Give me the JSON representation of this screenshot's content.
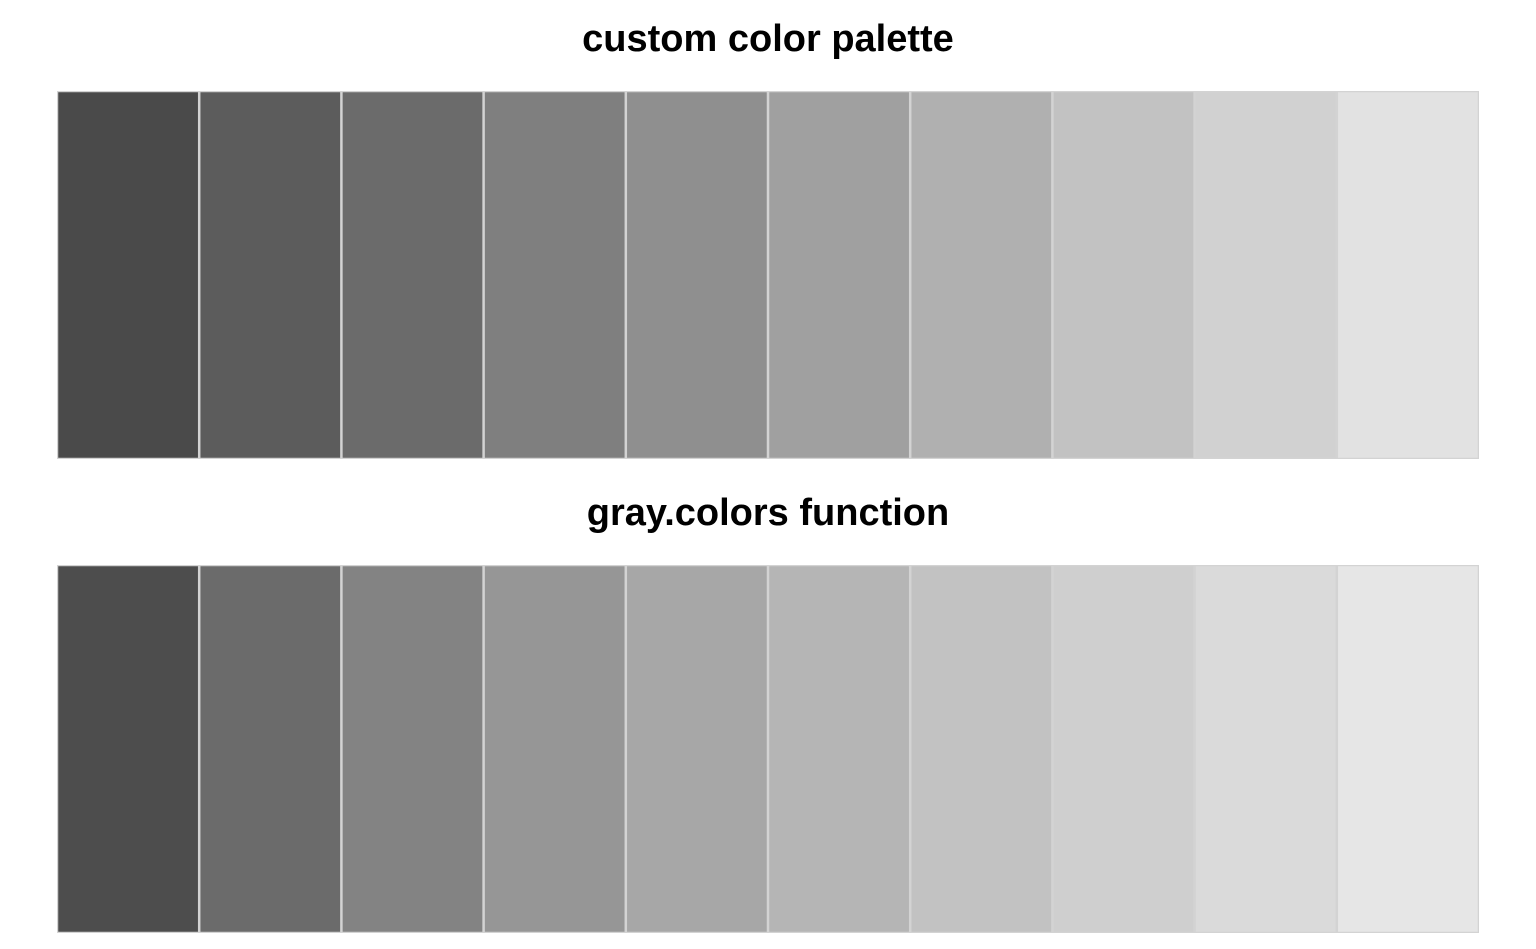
{
  "chart_data": [
    {
      "type": "palette",
      "title": "custom color palette",
      "colors": [
        "#4a4a4a",
        "#5c5c5c",
        "#6b6b6b",
        "#7f7f7f",
        "#8f8f8f",
        "#a0a0a0",
        "#b0b0b0",
        "#c2c2c2",
        "#d1d1d1",
        "#e2e2e2"
      ],
      "border_color": "#d3d3d3"
    },
    {
      "type": "palette",
      "title": "gray.colors function",
      "colors": [
        "#4d4d4d",
        "#6b6b6b",
        "#838383",
        "#969696",
        "#a7a7a7",
        "#b5b5b5",
        "#c2c2c2",
        "#cfcfcf",
        "#dadada",
        "#e6e6e6"
      ],
      "border_color": "#d3d3d3"
    }
  ]
}
